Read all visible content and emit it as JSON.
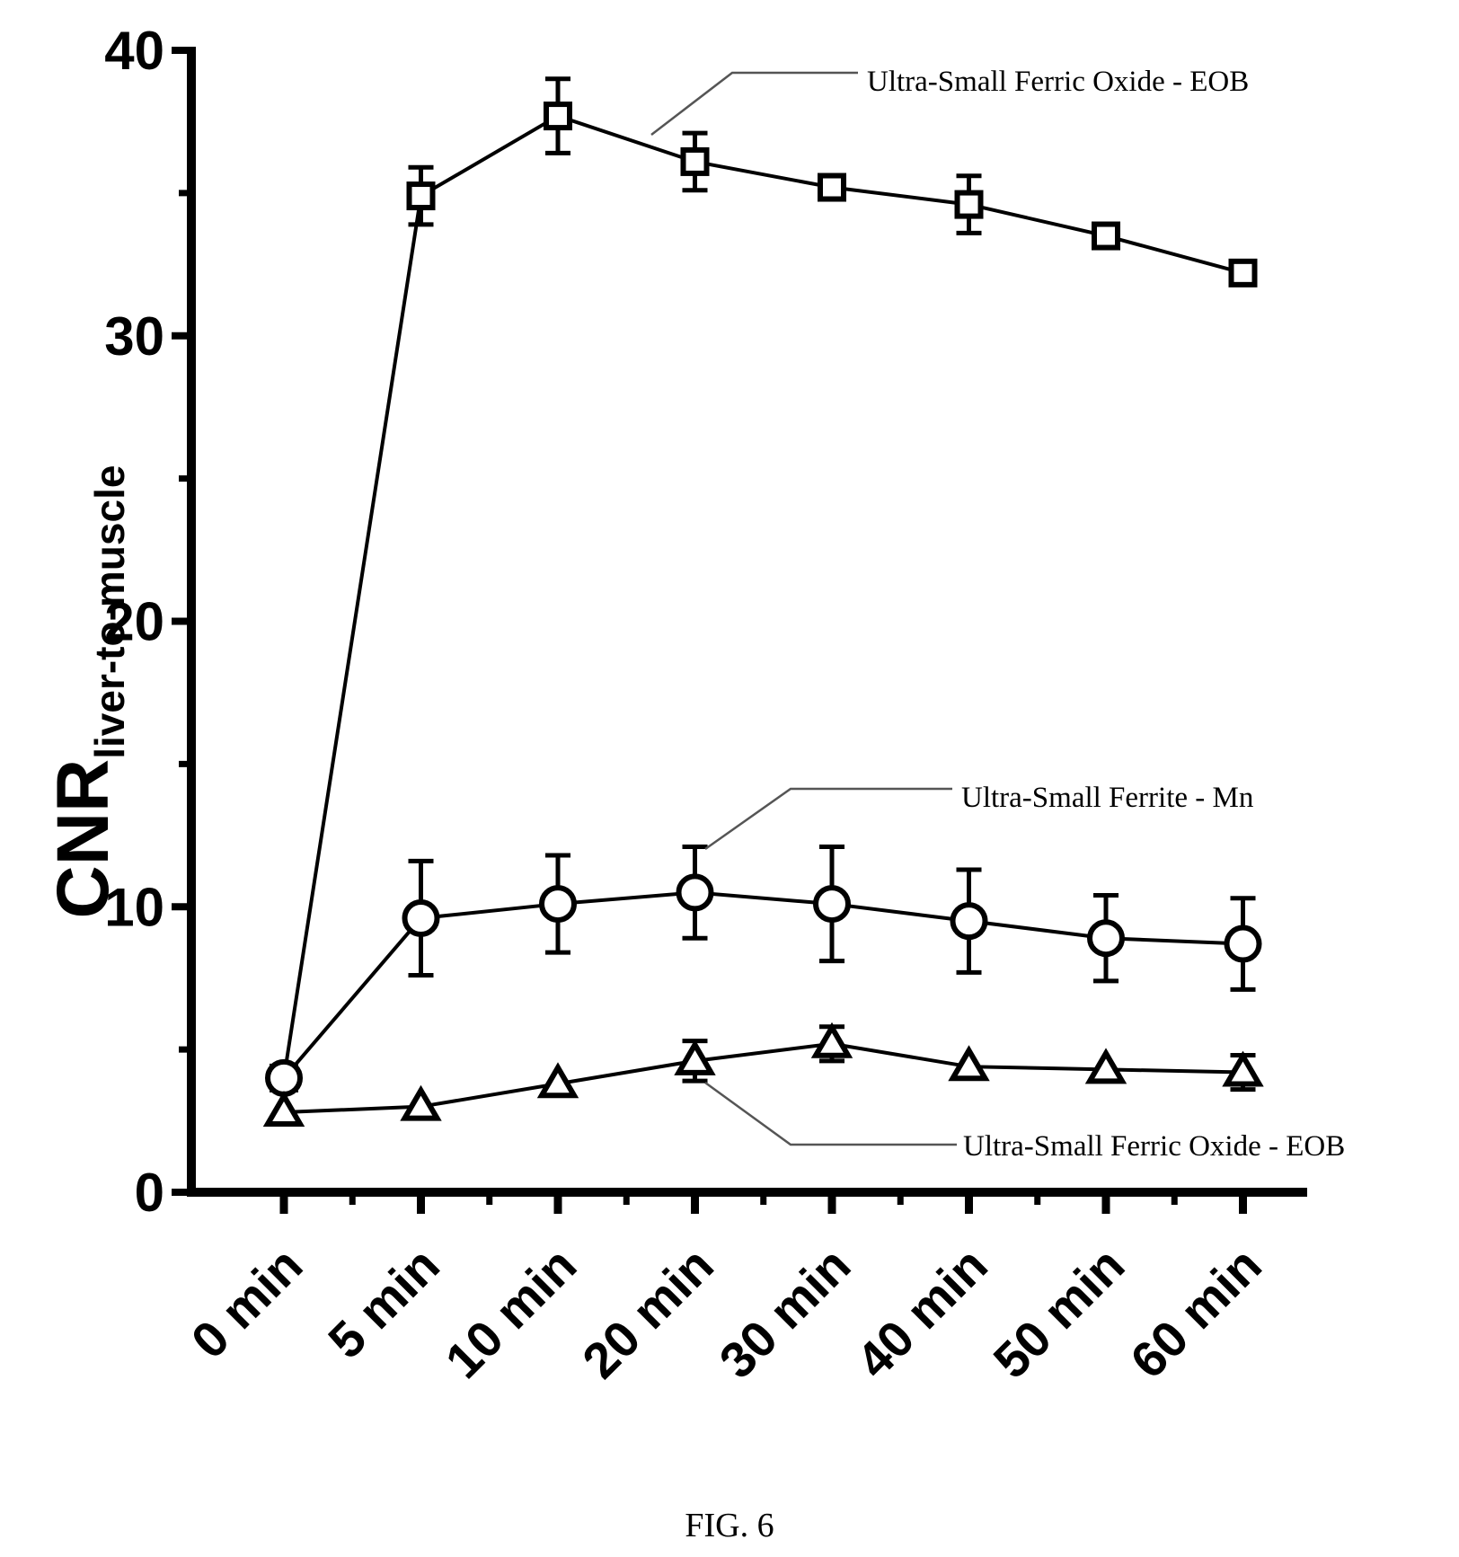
{
  "chart_data": {
    "type": "line",
    "categories": [
      "0 min",
      "5 min",
      "10 min",
      "20 min",
      "30 min",
      "40 min",
      "50 min",
      "60 min"
    ],
    "ylabel_main": "CNR",
    "ylabel_subscript": "liver-to-muscle",
    "ylim": [
      0,
      40
    ],
    "yticks": [
      "0",
      "10",
      "20",
      "30",
      "40"
    ],
    "series": [
      {
        "name": "Ultra-Small Ferric Oxide - EOB",
        "marker": "square",
        "values": [
          4.0,
          34.9,
          37.7,
          36.1,
          35.2,
          34.6,
          33.5,
          32.2
        ],
        "errors": [
          0,
          1.0,
          1.3,
          1.0,
          0,
          1.0,
          0,
          0
        ]
      },
      {
        "name": "Ultra-Small Ferrite - Mn",
        "marker": "circle",
        "values": [
          4.0,
          9.6,
          10.1,
          10.5,
          10.1,
          9.5,
          8.9,
          8.7
        ],
        "errors": [
          0,
          2.0,
          1.7,
          1.6,
          2.0,
          1.8,
          1.5,
          1.6
        ]
      },
      {
        "name": "Ultra-Small Ferric Oxide - EOB",
        "marker": "triangle",
        "values": [
          2.8,
          3.0,
          3.8,
          4.6,
          5.2,
          4.4,
          4.3,
          4.2
        ],
        "errors": [
          0,
          0,
          0,
          0.7,
          0.6,
          0,
          0,
          0.6
        ]
      }
    ],
    "grid": false,
    "legend": "inline-annotations"
  },
  "caption": "FIG. 6"
}
